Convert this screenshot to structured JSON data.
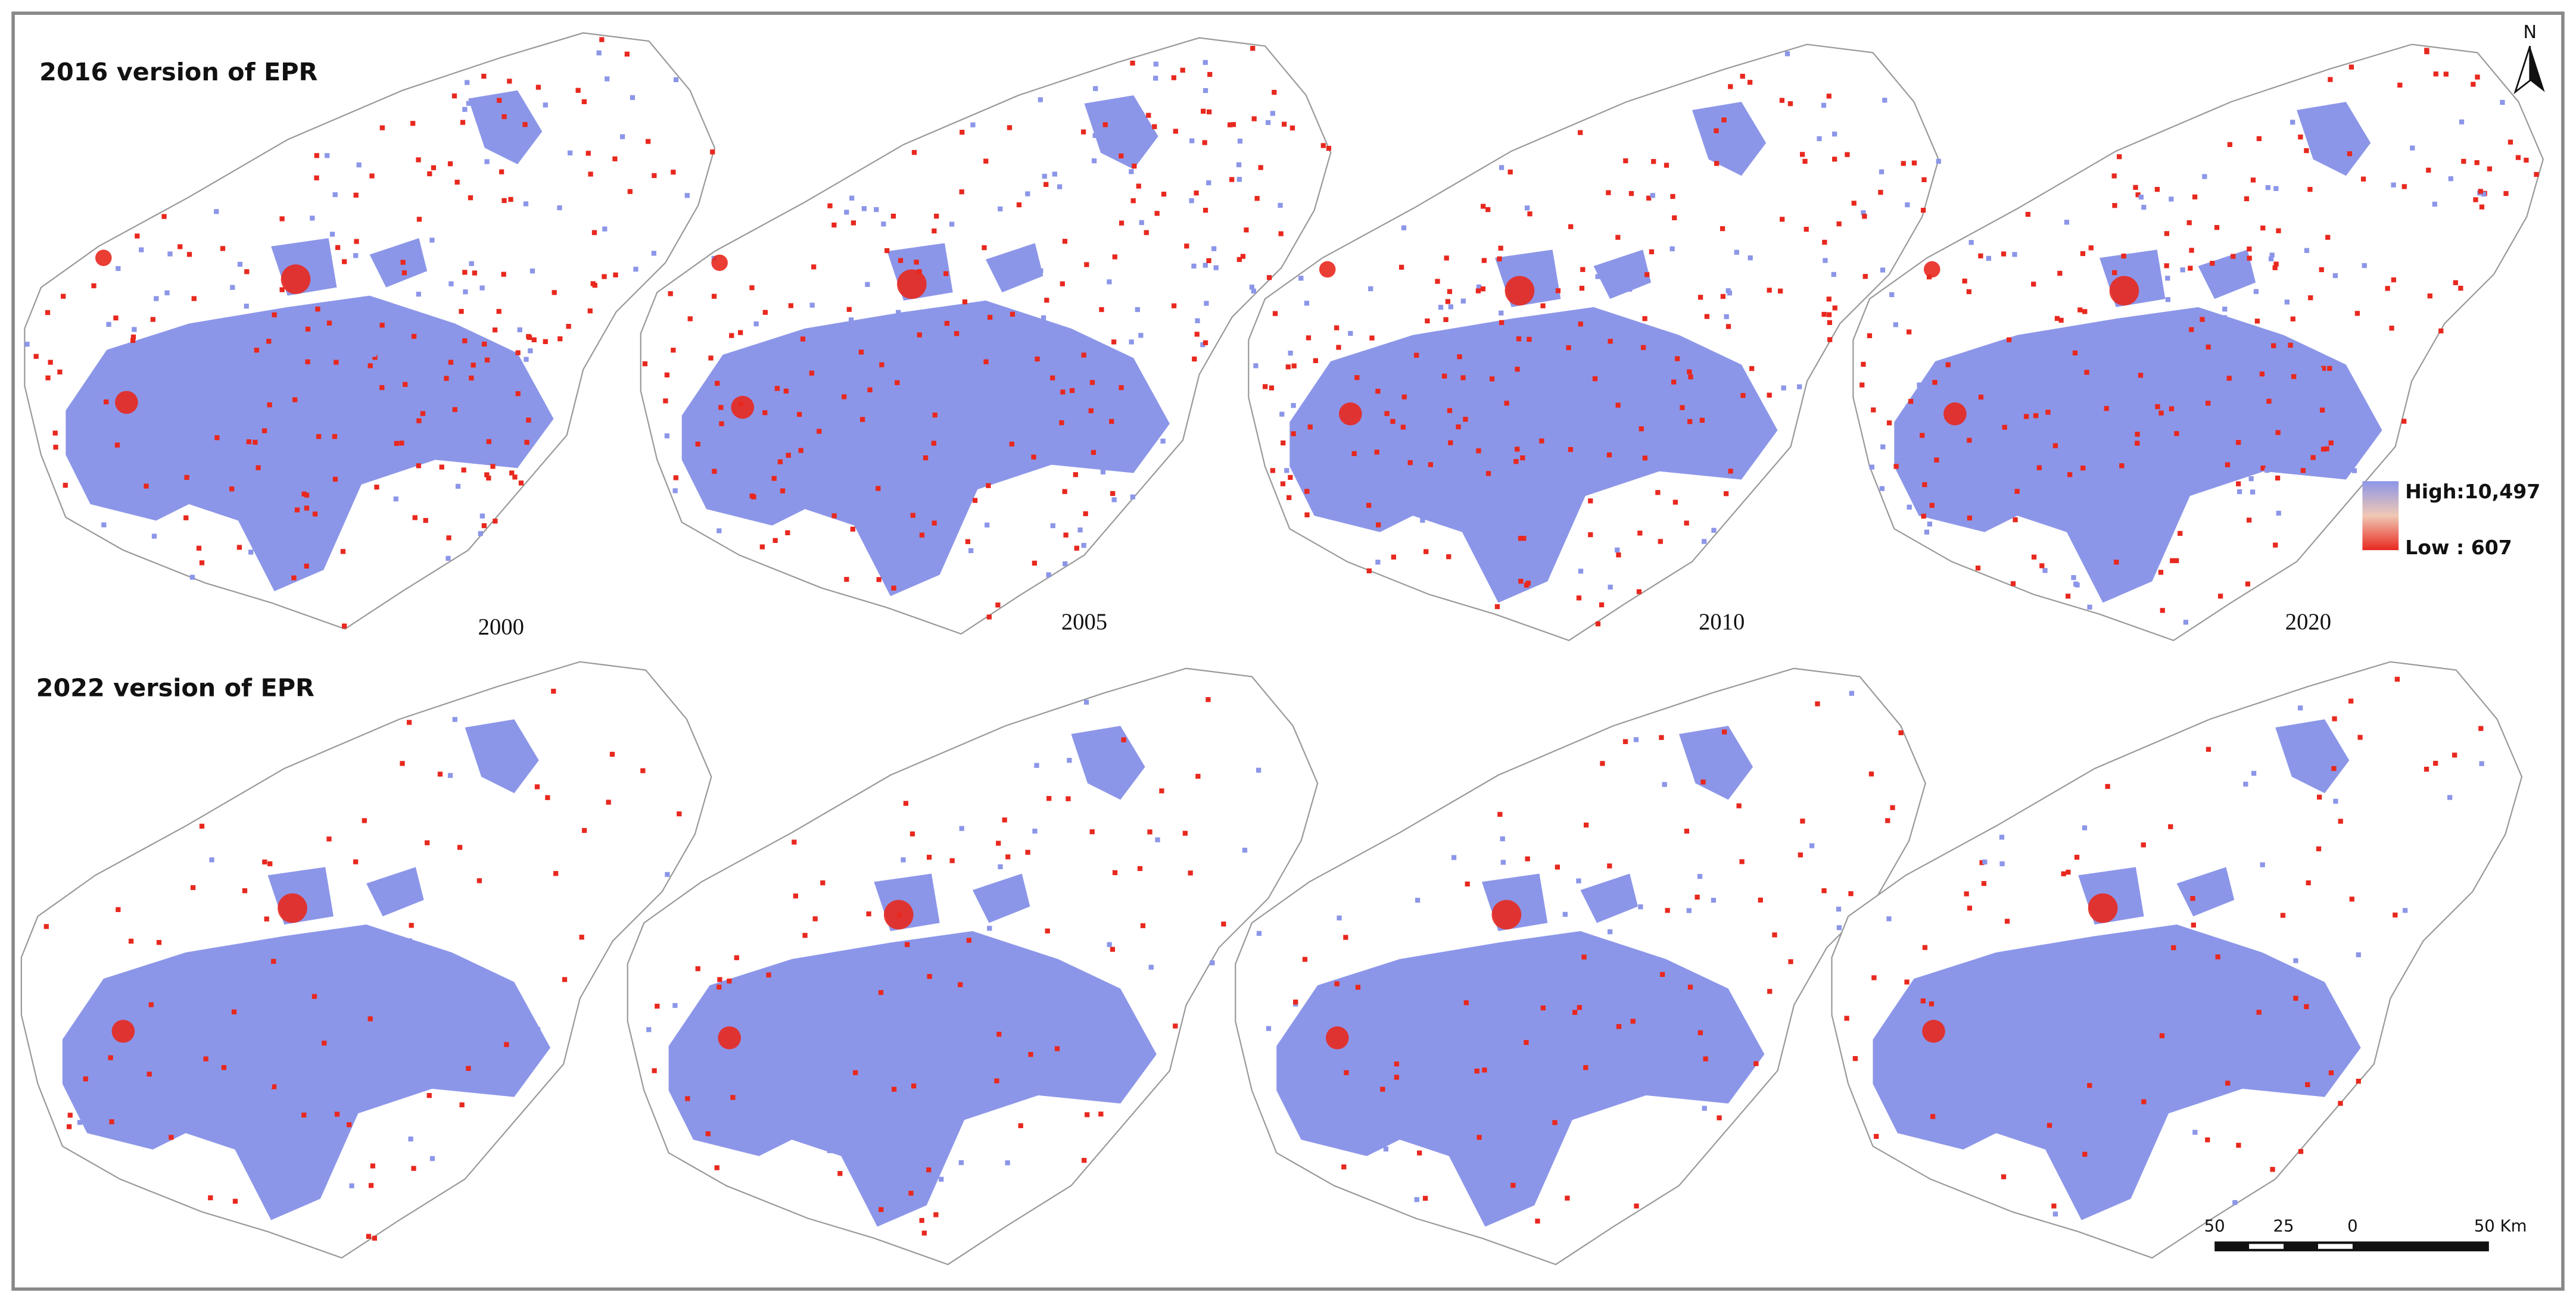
{
  "row_titles": [
    "2016 version of EPR",
    "2022 version of EPR"
  ],
  "years": [
    "2000",
    "2005",
    "2010",
    "2020"
  ],
  "legend": {
    "high": "High:10,497",
    "low": "Low : 607"
  },
  "north": "N",
  "scale_bar": {
    "labels": [
      "50",
      "25",
      "0",
      "50 Km"
    ]
  }
}
